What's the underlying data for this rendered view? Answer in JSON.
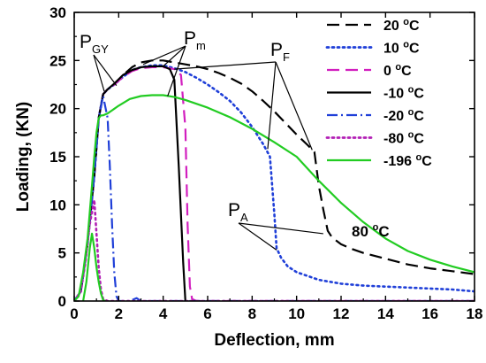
{
  "chart_data": {
    "type": "line",
    "xlabel": "Deflection, mm",
    "ylabel": "Loading, (KN)",
    "xlim": [
      0,
      18
    ],
    "ylim": [
      0,
      30
    ],
    "xticks": [
      "0",
      "2",
      "4",
      "6",
      "8",
      "10",
      "12",
      "14",
      "16",
      "18"
    ],
    "yticks": [
      "0",
      "5",
      "10",
      "15",
      "20",
      "25",
      "30"
    ],
    "grid": false,
    "legend_position": "top-right",
    "series": [
      {
        "name": "20 °C",
        "temp": "20",
        "color": "#000000",
        "dash": "long-dash",
        "x": [
          0,
          0.3,
          0.6,
          0.9,
          1.1,
          1.3,
          1.5,
          1.8,
          2.2,
          2.6,
          3.0,
          3.5,
          4.0,
          4.5,
          5.0,
          5.5,
          6.0,
          6.5,
          7.0,
          7.5,
          8.0,
          8.5,
          9.0,
          9.5,
          10.0,
          10.5,
          10.8,
          11.0,
          11.2,
          11.4,
          11.6,
          12.0,
          12.5,
          13.0,
          14.0,
          15.0,
          16.0,
          17.0,
          18.0
        ],
        "y": [
          0,
          1,
          6,
          13,
          19,
          21.5,
          22,
          22.5,
          23.5,
          24.3,
          24.8,
          25,
          25,
          24.8,
          24.6,
          24.4,
          24.1,
          23.7,
          23.2,
          22.6,
          21.8,
          20.8,
          19.7,
          18.5,
          17.3,
          16.2,
          15.5,
          12,
          9.5,
          7.3,
          6.6,
          5.9,
          5.4,
          5,
          4.4,
          3.8,
          3.4,
          3.1,
          2.8
        ]
      },
      {
        "name": "10 °C",
        "temp": "10",
        "color": "#1f3fd8",
        "dash": "dot",
        "x": [
          0,
          0.3,
          0.6,
          0.9,
          1.1,
          1.3,
          1.5,
          1.8,
          2.2,
          2.6,
          3.0,
          3.5,
          4.0,
          4.5,
          5.0,
          5.5,
          6.0,
          6.5,
          7.0,
          7.5,
          8.0,
          8.5,
          8.8,
          9.0,
          9.1,
          9.3,
          9.6,
          10.0,
          11.0,
          12.0,
          13.0,
          14.0,
          15.0,
          16.0,
          17.0,
          18.0
        ],
        "y": [
          0,
          1,
          6,
          13,
          19,
          21.5,
          22,
          22.5,
          23.3,
          24,
          24.3,
          24.5,
          24.5,
          24.2,
          23.8,
          23.2,
          22.5,
          21.7,
          20.8,
          19.6,
          18.1,
          16.3,
          15,
          9,
          5.5,
          4.5,
          3.6,
          3,
          2.2,
          1.8,
          1.6,
          1.5,
          1.4,
          1.3,
          1.2,
          1.0
        ]
      },
      {
        "name": "0 °C",
        "temp": "0",
        "color": "#d21fbf",
        "dash": "long-dash",
        "x": [
          0,
          0.3,
          0.6,
          0.9,
          1.1,
          1.3,
          1.5,
          1.8,
          2.2,
          2.6,
          3.0,
          3.5,
          4.0,
          4.5,
          4.8,
          5.0,
          5.1,
          5.2,
          5.3,
          5.5,
          6.0,
          8.0,
          10.0,
          12.0,
          14.0,
          16.0,
          18.0
        ],
        "y": [
          0,
          1,
          6,
          13,
          19,
          21.5,
          22,
          22.5,
          23.3,
          23.9,
          24.2,
          24.3,
          24.3,
          24.1,
          23.5,
          18,
          8,
          1.5,
          0.2,
          0,
          0,
          0,
          0,
          0,
          0,
          0,
          0
        ]
      },
      {
        "name": "-10 °C",
        "temp": "-10",
        "color": "#000000",
        "dash": "solid",
        "x": [
          0,
          0.3,
          0.6,
          0.9,
          1.1,
          1.3,
          1.5,
          1.8,
          2.2,
          2.6,
          3.0,
          3.5,
          4.0,
          4.3,
          4.5,
          4.7,
          4.9,
          5.0
        ],
        "y": [
          0,
          1,
          6,
          13,
          19,
          21.5,
          22,
          22.6,
          23.5,
          24,
          24.3,
          24.4,
          24.4,
          24.1,
          23,
          14,
          4,
          0
        ]
      },
      {
        "name": "-20 °C",
        "temp": "-20",
        "color": "#1f3fd8",
        "dash": "dash-dot",
        "x": [
          0,
          0.3,
          0.6,
          0.9,
          1.1,
          1.3,
          1.5,
          1.6,
          1.7,
          1.8,
          1.9,
          2.0,
          2.5,
          2.8,
          3.0,
          5.0,
          8.0,
          12.0,
          18.0
        ],
        "y": [
          0,
          1,
          6,
          13,
          19,
          21.3,
          19,
          14,
          8,
          3,
          0.5,
          0,
          0,
          0.3,
          0,
          0,
          0,
          0,
          0
        ]
      },
      {
        "name": "-80 °C",
        "temp": "-80",
        "color": "#b21fb5",
        "dash": "dot",
        "x": [
          0,
          0.3,
          0.5,
          0.7,
          0.9,
          1.0,
          1.1,
          1.2,
          1.3,
          1.5,
          2.0,
          5.0,
          10.0,
          18.0
        ],
        "y": [
          0,
          1,
          4,
          8,
          10.5,
          7,
          3.5,
          1.2,
          0.2,
          0,
          0,
          0,
          0,
          0
        ]
      },
      {
        "name": "-196 °C",
        "temp": "-196",
        "color": "#22cc22",
        "dash": "solid",
        "x": [
          0,
          0.2,
          0.4,
          0.6,
          0.8,
          0.9,
          1.0,
          1.1,
          1.2,
          1.3,
          1.5,
          2.0,
          2.5,
          3.0,
          3.5,
          4.0,
          4.5,
          5.0,
          6.0,
          7.0,
          8.0,
          9.0,
          10.0,
          11.0,
          12.0,
          13.0,
          14.0,
          15.0,
          16.0,
          17.0,
          18.0
        ],
        "y": [
          0,
          0.5,
          3,
          6.5,
          12,
          15,
          17.5,
          19,
          19.3,
          19.3,
          19.5,
          20.3,
          21,
          21.3,
          21.4,
          21.4,
          21.2,
          20.9,
          20.1,
          19.1,
          17.9,
          16.5,
          15,
          12.5,
          10.2,
          8.2,
          6.5,
          5.2,
          4.3,
          3.6,
          3.0
        ]
      },
      {
        "name": "",
        "temp": "",
        "color": "#22cc22",
        "dash": "solid",
        "in_legend": false,
        "x": [
          0.4,
          0.55,
          0.7,
          0.8,
          0.9,
          1.0,
          1.1,
          1.2,
          1.3,
          1.4
        ],
        "y": [
          0,
          2,
          5.5,
          7,
          5.5,
          3.5,
          2,
          0.8,
          0.1,
          0
        ]
      }
    ],
    "annotations": [
      {
        "id": "pgy",
        "main": "P",
        "sub": "GY"
      },
      {
        "id": "pm",
        "main": "P",
        "sub": "m"
      },
      {
        "id": "pf",
        "main": "P",
        "sub": "F"
      },
      {
        "id": "pa",
        "main": "P",
        "sub": "A"
      },
      {
        "id": "t80",
        "num": "80",
        "unit": "C"
      }
    ]
  },
  "colors": {
    "axis": "#000000",
    "background": "#ffffff"
  }
}
